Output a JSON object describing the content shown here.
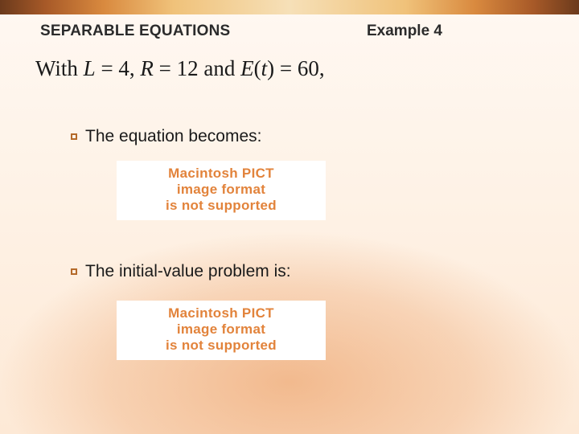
{
  "colors": {
    "stripe_gradient": [
      "#6b3a1c",
      "#a85a28",
      "#d98a3f",
      "#f0c27a",
      "#f6e0b8"
    ],
    "background_base": "#fef2e6",
    "bullet_square_border": "#b46a2a",
    "pict_text": "#e2833b",
    "pict_bg": "#ffffff",
    "text": "#1a1a1a"
  },
  "typography": {
    "header_fontsize": 19,
    "statement_fontsize": 27,
    "bullet_fontsize": 21,
    "pict_fontsize": 17,
    "header_font": "Arial",
    "statement_font": "Times New Roman"
  },
  "header": {
    "section_title": "SEPARABLE EQUATIONS",
    "example_label": "Example 4"
  },
  "statement": {
    "prefix": "With ",
    "L_var": "L",
    "L_eq": " = 4, ",
    "R_var": "R",
    "R_eq": " = 12 and ",
    "E_var": "E",
    "t_open": "(",
    "t_var": "t",
    "t_close": ") = 60,"
  },
  "bullets": [
    {
      "text": "The equation becomes:"
    },
    {
      "text": "The initial-value problem is:"
    }
  ],
  "pict_placeholder": {
    "line1": "Macintosh PICT",
    "line2": "image format",
    "line3": "is not supported"
  }
}
